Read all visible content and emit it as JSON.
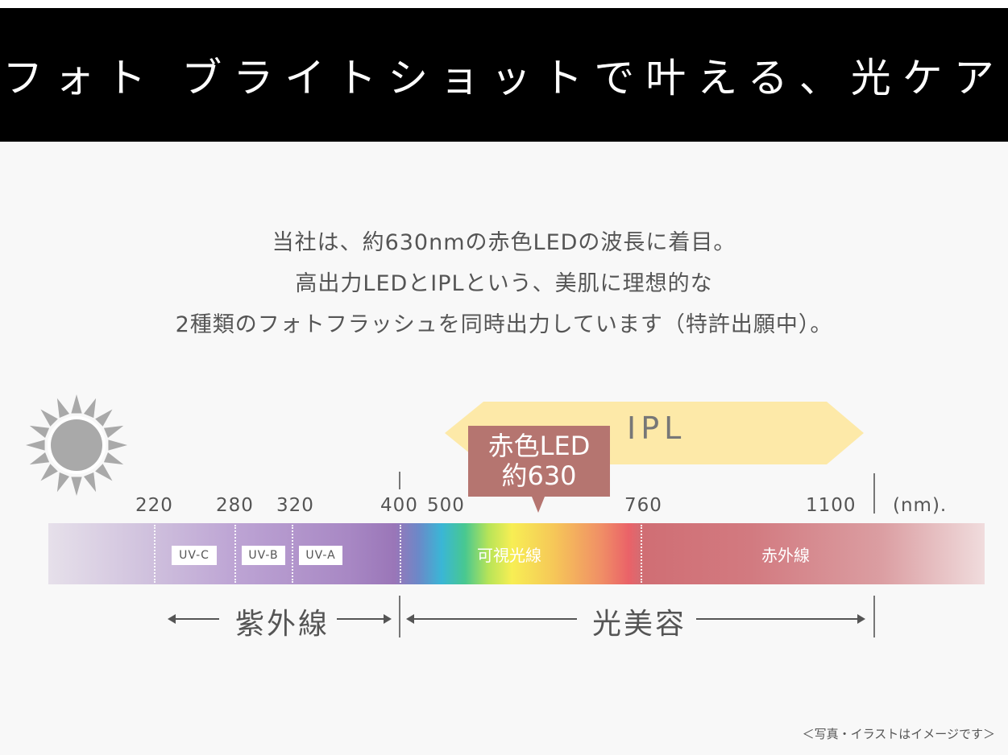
{
  "header": {
    "title": "フォト ブライトショットで叶える、光ケア"
  },
  "intro": {
    "lines": [
      "当社は、約630nmの赤色LEDの波長に着目。",
      "高出力LEDとIPLという、美肌に理想的な",
      "2種類のフォトフラッシュを同時出力しています（特許出願中）。"
    ]
  },
  "diagram": {
    "ipl_label": "IPL",
    "red_led": {
      "line1": "赤色LED",
      "line2": "約630"
    },
    "ticks": [
      "220",
      "280",
      "320",
      "400",
      "500",
      "760",
      "1100"
    ],
    "unit": "(nm).",
    "uv_labels": [
      "UV-C",
      "UV-B",
      "UV-A"
    ],
    "band_labels": {
      "visible": "可視光線",
      "infrared": "赤外線"
    },
    "categories": {
      "ultraviolet": "紫外線",
      "beauty": "光美容"
    },
    "colors": {
      "ipl": "#fde9a8",
      "red_led": "#b57570",
      "sun": "#a9a9a9"
    }
  },
  "footnote": "＜写真・イラストはイメージです＞"
}
